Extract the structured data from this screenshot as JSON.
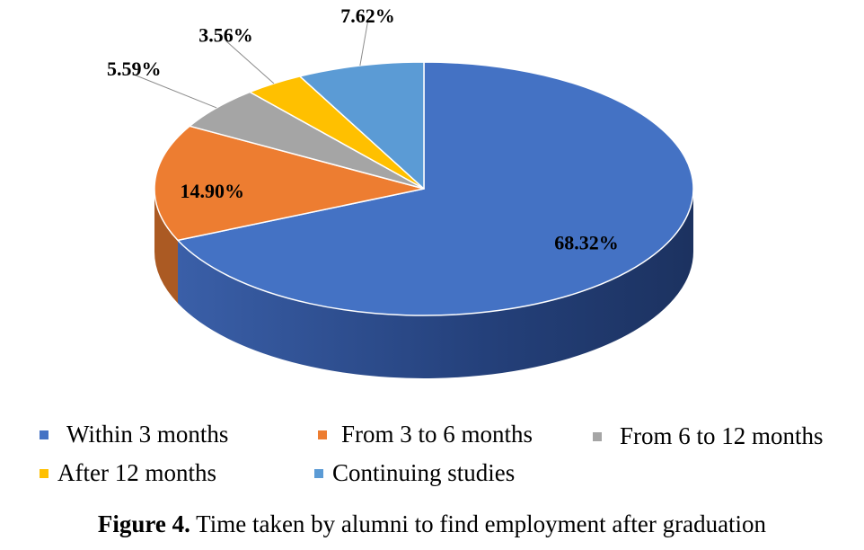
{
  "chart_data": {
    "type": "pie",
    "style": "3d",
    "start_angle_deg": 0,
    "direction": "clockwise",
    "slices": [
      {
        "name": "Within 3 months",
        "value": 68.32,
        "label": "68.32%",
        "color": "#4472C4"
      },
      {
        "name": "From 3 to 6 months",
        "value": 14.9,
        "label": "14.90%",
        "color": "#ED7D31"
      },
      {
        "name": "From 6 to 12 months",
        "value": 5.59,
        "label": "5.59%",
        "color": "#A5A5A5"
      },
      {
        "name": "After 12 months",
        "value": 3.56,
        "label": "3.56%",
        "color": "#FFC000"
      },
      {
        "name": "Continuing studies",
        "value": 7.62,
        "label": "7.62%",
        "color": "#5B9BD5"
      }
    ],
    "legend_position": "bottom"
  },
  "caption": {
    "label": "Figure 4.",
    "text": " Time taken by alumni to find employment after graduation"
  }
}
